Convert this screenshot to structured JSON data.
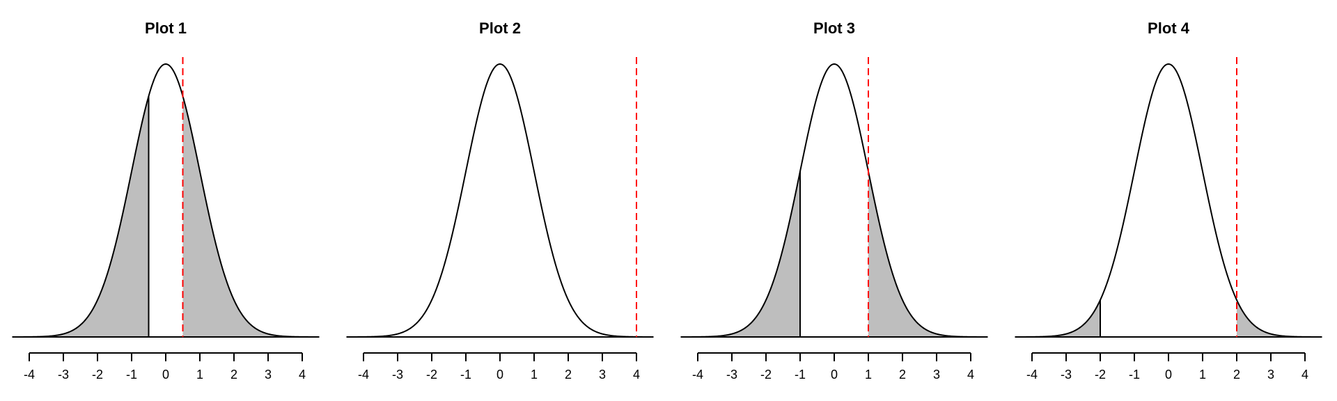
{
  "chart_data": [
    {
      "type": "area",
      "title": "Plot 1",
      "xlim": [
        -4,
        4
      ],
      "x_ticks": [
        -4,
        -3,
        -2,
        -1,
        0,
        1,
        2,
        3,
        4
      ],
      "curve": "standard normal density",
      "shaded_regions": [
        [
          -4.5,
          -0.5
        ],
        [
          0.5,
          4.5
        ]
      ],
      "boundary_lines": [
        -0.5
      ],
      "dashed_line_x": 0.5,
      "colors": {
        "curve": "#000000",
        "fill": "#bebebe",
        "dashed": "#ff0000"
      }
    },
    {
      "type": "area",
      "title": "Plot 2",
      "xlim": [
        -4,
        4
      ],
      "x_ticks": [
        -4,
        -3,
        -2,
        -1,
        0,
        1,
        2,
        3,
        4
      ],
      "curve": "standard normal density",
      "shaded_regions": [],
      "boundary_lines": [],
      "dashed_line_x": 4,
      "colors": {
        "curve": "#000000",
        "fill": "#bebebe",
        "dashed": "#ff0000"
      }
    },
    {
      "type": "area",
      "title": "Plot 3",
      "xlim": [
        -4,
        4
      ],
      "x_ticks": [
        -4,
        -3,
        -2,
        -1,
        0,
        1,
        2,
        3,
        4
      ],
      "curve": "standard normal density",
      "shaded_regions": [
        [
          -4.5,
          -1
        ],
        [
          1,
          4.5
        ]
      ],
      "boundary_lines": [
        -1
      ],
      "dashed_line_x": 1,
      "colors": {
        "curve": "#000000",
        "fill": "#bebebe",
        "dashed": "#ff0000"
      }
    },
    {
      "type": "area",
      "title": "Plot 4",
      "xlim": [
        -4,
        4
      ],
      "x_ticks": [
        -4,
        -3,
        -2,
        -1,
        0,
        1,
        2,
        3,
        4
      ],
      "curve": "standard normal density",
      "shaded_regions": [
        [
          -4.5,
          -2
        ],
        [
          2,
          4.5
        ]
      ],
      "boundary_lines": [
        -2
      ],
      "dashed_line_x": 2,
      "colors": {
        "curve": "#000000",
        "fill": "#bebebe",
        "dashed": "#ff0000"
      }
    }
  ]
}
